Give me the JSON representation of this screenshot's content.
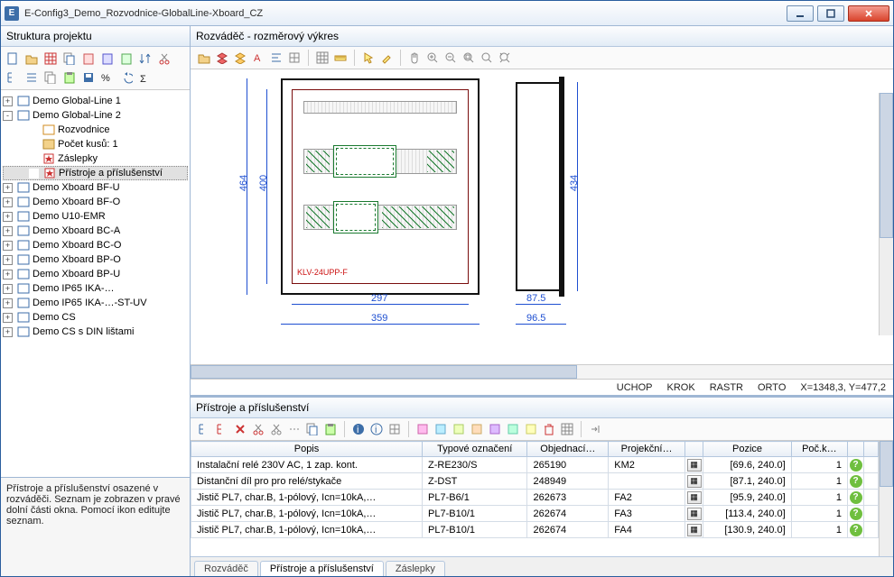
{
  "window": {
    "title": "E-Config3_Demo_Rozvodnice-GlobalLine-Xboard_CZ"
  },
  "sidebar": {
    "header": "Struktura projektu",
    "help": "Přístroje a příslušenství osazené v rozváděči. Seznam je zobrazen v pravé dolní části okna. Pomocí ikon editujte seznam."
  },
  "tree": {
    "top": [
      {
        "label": "Demo Global-Line 1",
        "exp": "+"
      }
    ],
    "open": {
      "label": "Demo Global-Line 2",
      "exp": "-",
      "children": [
        {
          "label": "Rozvodnice",
          "icon": "box"
        },
        {
          "label": "Počet kusů: 1",
          "icon": "leaf"
        },
        {
          "label": "Záslepky",
          "icon": "star"
        },
        {
          "label": "Přístroje a příslušenství",
          "icon": "star",
          "selected": true
        }
      ]
    },
    "rest": [
      "Demo Xboard BF-U",
      "Demo Xboard BF-O",
      "Demo U10-EMR",
      "Demo Xboard BC-A",
      "Demo Xboard BC-O",
      "Demo Xboard BP-O",
      "Demo Xboard BP-U",
      "Demo IP65 IKA-…",
      "Demo IP65 IKA-…-ST-UV",
      "Demo CS",
      "Demo CS s DIN lištami"
    ]
  },
  "drawing": {
    "header": "Rozváděč - rozměrový výkres",
    "label_model": "KLV-24UPP-F",
    "dims": {
      "h_outer": "464",
      "h_inner": "400",
      "w_inner": "297",
      "w_outer": "359",
      "side_h": "434",
      "side_w1": "87.5",
      "side_w2": "96.5"
    },
    "status": {
      "uchop": "UCHOP",
      "krok": "KROK",
      "rastr": "RASTR",
      "orto": "ORTO",
      "coords": "X=1348,3, Y=477,2"
    }
  },
  "bottom": {
    "header": "Přístroje a příslušenství",
    "columns": [
      "Popis",
      "Typové označení",
      "Objednací…",
      "Projekční…",
      "",
      "Pozice",
      "Poč.k…",
      "",
      ""
    ],
    "rows": [
      {
        "popis": "Instalační relé 230V AC, 1 zap. kont.",
        "typ": "Z-RE230/S",
        "obj": "265190",
        "proj": "KM2",
        "poz": "[69.6, 240.0]",
        "pk": "1"
      },
      {
        "popis": "Distanční díl pro pro relé/stykače",
        "typ": "Z-DST",
        "obj": "248949",
        "proj": "",
        "poz": "[87.1, 240.0]",
        "pk": "1"
      },
      {
        "popis": "Jistič PL7, char.B, 1-pólový, Icn=10kA,…",
        "typ": "PL7-B6/1",
        "obj": "262673",
        "proj": "FA2",
        "poz": "[95.9, 240.0]",
        "pk": "1"
      },
      {
        "popis": "Jistič PL7, char.B, 1-pólový, Icn=10kA,…",
        "typ": "PL7-B10/1",
        "obj": "262674",
        "proj": "FA3",
        "poz": "[113.4, 240.0]",
        "pk": "1"
      },
      {
        "popis": "Jistič PL7, char.B, 1-pólový, Icn=10kA,…",
        "typ": "PL7-B10/1",
        "obj": "262674",
        "proj": "FA4",
        "poz": "[130.9, 240.0]",
        "pk": "1"
      }
    ],
    "tabs": [
      "Rozváděč",
      "Přístroje a příslušenství",
      "Záslepky"
    ],
    "active_tab": 1
  },
  "icons": {
    "sidebar_tb": [
      "new",
      "open",
      "grid1",
      "copy",
      "paste1",
      "paste2",
      "paste3",
      "sort",
      "cut",
      "tree",
      "list",
      "copy2",
      "paste",
      "save",
      "percent",
      "undo",
      "sigma"
    ],
    "draw_tb": [
      "open",
      "layers-red",
      "layers",
      "text",
      "align",
      "grid",
      "|",
      "grid2",
      "ruler",
      "|",
      "pointer",
      "pick",
      "|",
      "hand",
      "zoom-in",
      "zoom-out",
      "zoom-fit",
      "zoom-sel",
      "zoom-all"
    ],
    "bottom_tb": [
      "tree",
      "tree2",
      "x",
      "cut",
      "scissors",
      "cut2",
      "copy",
      "paste",
      "|",
      "info",
      "info2",
      "grid",
      "|",
      "c1",
      "c2",
      "c3",
      "c4",
      "c5",
      "c6",
      "c7",
      "del",
      "grid2",
      "|",
      "end"
    ]
  },
  "colors": {
    "dim": "#1e4fd1",
    "cab": "#111111",
    "cab_inner": "#7a0d0d",
    "device": "#1a7a2f",
    "accent": "#3d6ea8"
  }
}
